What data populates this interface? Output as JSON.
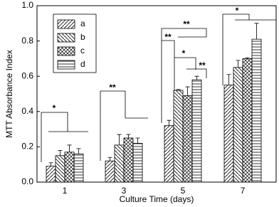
{
  "chart_data": {
    "type": "bar",
    "x_label": "Culture Time (days)",
    "y_label": "MTT Absorbance Index",
    "categories": [
      "1",
      "3",
      "5",
      "7"
    ],
    "series": [
      {
        "name": "a",
        "color": "#000000",
        "pattern": "diagonal-up",
        "values": [
          0.09,
          0.12,
          0.32,
          0.55
        ],
        "errors": [
          0.02,
          0.02,
          0.03,
          0.06
        ]
      },
      {
        "name": "b",
        "color": "#000000",
        "pattern": "diagonal-down",
        "values": [
          0.15,
          0.21,
          0.52,
          0.65
        ],
        "errors": [
          0.03,
          0.06,
          0.005,
          0.04
        ]
      },
      {
        "name": "c",
        "color": "#000000",
        "pattern": "crosshatch",
        "values": [
          0.17,
          0.25,
          0.49,
          0.7
        ],
        "errors": [
          0.04,
          0.02,
          0.05,
          0.005
        ]
      },
      {
        "name": "d",
        "color": "#000000",
        "pattern": "horizontal",
        "values": [
          0.16,
          0.22,
          0.58,
          0.81
        ],
        "errors": [
          0.03,
          0.03,
          0.02,
          0.09
        ]
      }
    ],
    "ylim": [
      0,
      1
    ],
    "yticks": [
      {
        "value": 0,
        "label": "0.0"
      },
      0.2,
      0.4,
      0.6,
      0.8,
      {
        "value": 1,
        "label": "1.0"
      }
    ],
    "legend": "top-left",
    "annotations": [
      "*",
      "**",
      "**",
      "**",
      "*",
      "**",
      "*"
    ]
  }
}
